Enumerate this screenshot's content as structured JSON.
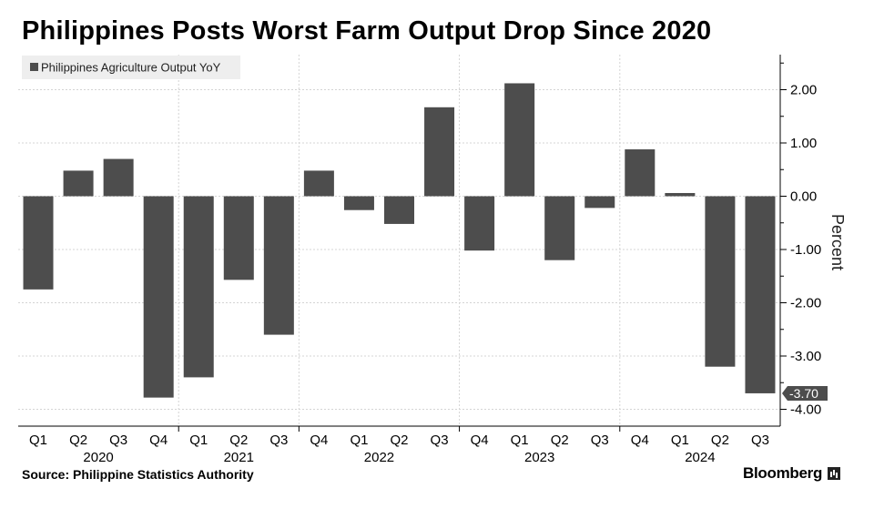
{
  "title": "Philippines Posts Worst Farm Output Drop Since 2020",
  "source": "Source: Philippine Statistics Authority",
  "brand": "Bloomberg",
  "chart_data": {
    "type": "bar",
    "title": "Philippines Posts Worst Farm Output Drop Since 2020",
    "ylabel": "Percent",
    "xlabel": "",
    "ylim": [
      -4.1,
      2.6
    ],
    "yticks": [
      "2.00",
      "1.00",
      "0.00",
      "-1.00",
      "-2.00",
      "-3.00",
      "-4.00"
    ],
    "ytick_values": [
      2,
      1,
      0,
      -1,
      -2,
      -3,
      -4
    ],
    "y_axis_position": "right",
    "grid": true,
    "legend_position": "top-left",
    "bar_color": "#4d4d4d",
    "categories": [
      "Q1",
      "Q2",
      "Q3",
      "Q4",
      "Q1",
      "Q2",
      "Q3",
      "Q4",
      "Q1",
      "Q2",
      "Q3",
      "Q4",
      "Q1",
      "Q2",
      "Q3",
      "Q4",
      "Q1",
      "Q2",
      "Q3"
    ],
    "years": [
      {
        "label": "2020",
        "start": 0,
        "end": 3
      },
      {
        "label": "2021",
        "start": 4,
        "end": 6
      },
      {
        "label": "2022",
        "start": 7,
        "end": 10
      },
      {
        "label": "2023",
        "start": 11,
        "end": 14
      },
      {
        "label": "2024",
        "start": 15,
        "end": 18
      }
    ],
    "series": [
      {
        "name": "Philippines Agriculture Output YoY",
        "values": [
          -1.75,
          0.48,
          0.7,
          -3.78,
          -3.4,
          -1.57,
          -2.6,
          0.48,
          -0.26,
          -0.52,
          1.67,
          -1.02,
          2.12,
          -1.2,
          -0.22,
          0.88,
          0.06,
          -3.2,
          -3.7
        ]
      }
    ],
    "last_value_label": "-3.70"
  }
}
